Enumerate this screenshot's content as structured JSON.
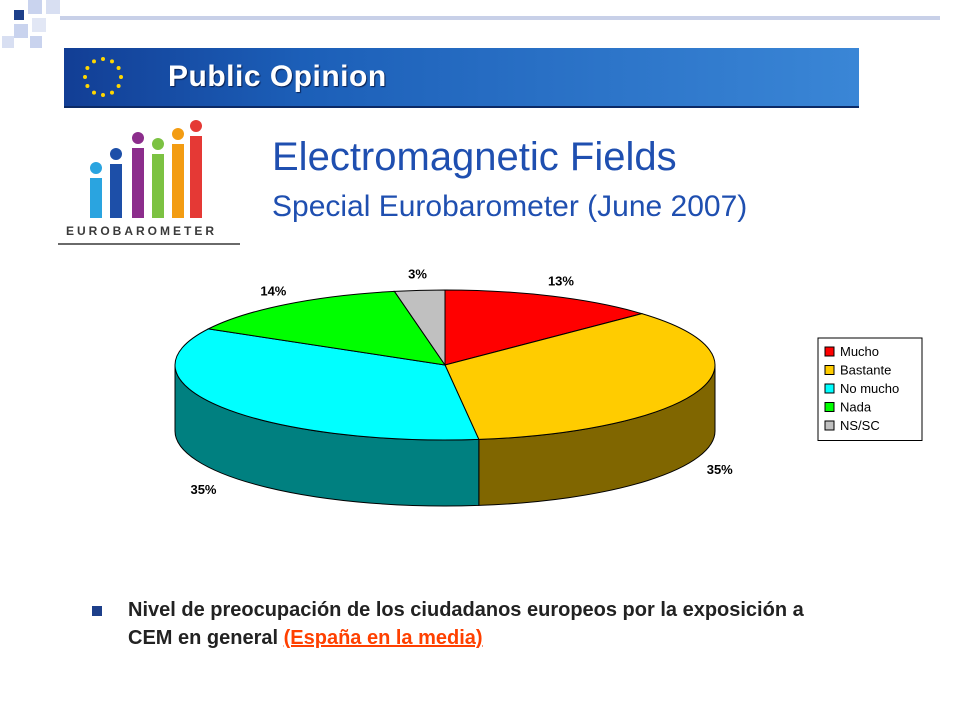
{
  "header": {
    "banner_text": "Public Opinion",
    "title": "Electromagnetic Fields",
    "subtitle": "Special Eurobarometer (June 2007)",
    "logo_text": "EUROBAROMETER"
  },
  "bottom": {
    "text": "Nivel de preocupación de los ciudadanos europeos por la exposición a CEM en general",
    "link": "(España en la media)"
  },
  "chart_data": {
    "type": "pie",
    "categories": [
      "Mucho",
      "Bastante",
      "No mucho",
      "Nada",
      "NS/SC"
    ],
    "values": [
      13,
      35,
      35,
      14,
      3
    ],
    "labels": [
      "13%",
      "35%",
      "35%",
      "14%",
      "3%"
    ],
    "colors": [
      "#ff0000",
      "#ffcc00",
      "#00ffff",
      "#00ff00",
      "#c0c0c0"
    ],
    "side_colors": [
      "#a00000",
      "#806600",
      "#008080",
      "#008000",
      "#808080"
    ],
    "legend_placement": "right",
    "three_d": true
  }
}
